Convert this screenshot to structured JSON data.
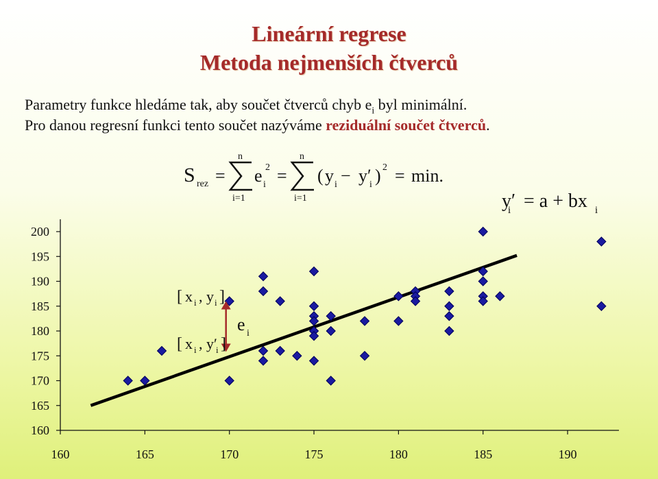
{
  "header": {
    "title_line1": "Lineární regrese",
    "title_line2": "Metoda nejmenších čtverců"
  },
  "text": {
    "line1_part1": "Parametry funkce hledáme tak, aby součet čtverců chyb e",
    "line1_sub": "i",
    "line1_part2": " byl minimální.",
    "line2_part1": "Pro danou regresní funkci tento součet nazýváme ",
    "line2_emph": "reziduální součet čtverců",
    "line2_end": "."
  },
  "formulas": {
    "sum_formula": "S_rez = Σ_{i=1}^{n} e_i^2 = Σ_{i=1}^{n} (y_i − y'_i)^2 = min.",
    "regression_formula": "y'_i = a + bx_i",
    "point_label": "[x_i , y_i]",
    "fitted_point_label": "[x_i , y'_i]",
    "residual_label": "e_i"
  },
  "chart_data": {
    "type": "scatter",
    "title": "",
    "xlabel": "",
    "ylabel": "",
    "xlim": [
      160,
      190
    ],
    "ylim": [
      160,
      200
    ],
    "x_ticks": [
      160,
      165,
      170,
      175,
      180,
      185,
      190
    ],
    "y_ticks": [
      160,
      165,
      170,
      175,
      180,
      185,
      190,
      195,
      200
    ],
    "grid": false,
    "series": [
      {
        "marker": "diamond",
        "color": "#1a1aa0",
        "points": [
          [
            164,
            170
          ],
          [
            165,
            170
          ],
          [
            166,
            176
          ],
          [
            170,
            186
          ],
          [
            170,
            170
          ],
          [
            172,
            191
          ],
          [
            172,
            188
          ],
          [
            172,
            176
          ],
          [
            172,
            174
          ],
          [
            173,
            186
          ],
          [
            173,
            176
          ],
          [
            174,
            175
          ],
          [
            175,
            192
          ],
          [
            175,
            185
          ],
          [
            175,
            183
          ],
          [
            175,
            182
          ],
          [
            175,
            180
          ],
          [
            175,
            179
          ],
          [
            175,
            174
          ],
          [
            176,
            183
          ],
          [
            176,
            180
          ],
          [
            176,
            170
          ],
          [
            178,
            182
          ],
          [
            178,
            175
          ],
          [
            180,
            187
          ],
          [
            180,
            182
          ],
          [
            181,
            188
          ],
          [
            181,
            187
          ],
          [
            181,
            186
          ],
          [
            183,
            188
          ],
          [
            183,
            185
          ],
          [
            183,
            183
          ],
          [
            183,
            180
          ],
          [
            185,
            200
          ],
          [
            185,
            192
          ],
          [
            185,
            190
          ],
          [
            185,
            187
          ],
          [
            185,
            186
          ],
          [
            186,
            187
          ],
          [
            192,
            198
          ],
          [
            192,
            185
          ]
        ]
      }
    ],
    "regression_line": {
      "x": [
        161.8,
        187
      ],
      "y": [
        165,
        195.2
      ],
      "color": "#000000"
    },
    "residual_arrow": {
      "x": 170,
      "y_from": 186,
      "y_to": 175.8,
      "color": "#a52a2a"
    }
  }
}
